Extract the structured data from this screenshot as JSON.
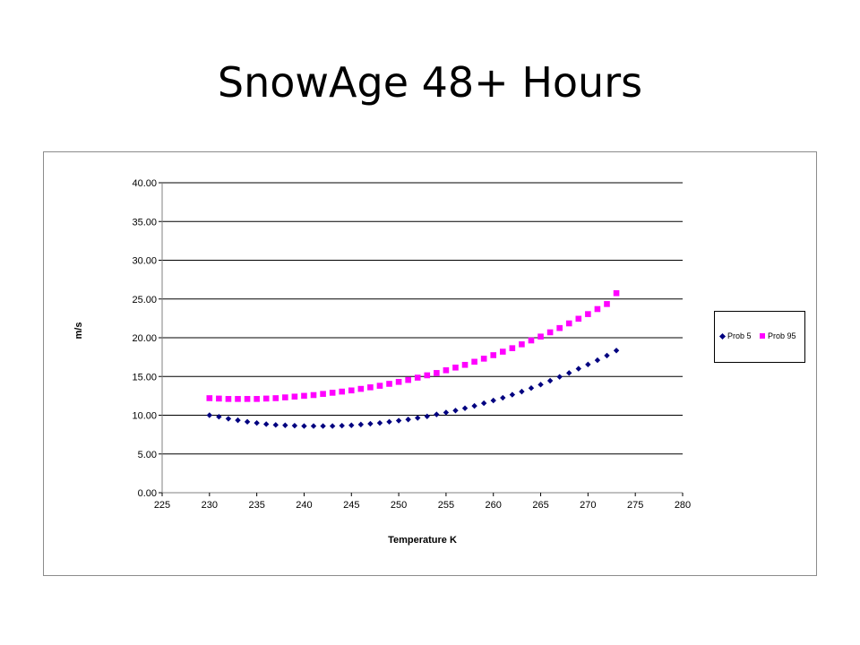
{
  "slide": {
    "title": "SnowAge 48+ Hours"
  },
  "chart_data": {
    "type": "scatter",
    "title": "",
    "xlabel": "Temperature K",
    "ylabel": "m/s",
    "xlim": [
      225,
      280
    ],
    "ylim": [
      0,
      40
    ],
    "x_ticks": [
      "225",
      "230",
      "235",
      "240",
      "245",
      "250",
      "255",
      "260",
      "265",
      "270",
      "275",
      "280"
    ],
    "y_ticks": [
      "0.00",
      "5.00",
      "10.00",
      "15.00",
      "20.00",
      "25.00",
      "30.00",
      "35.00",
      "40.00"
    ],
    "grid": "horizontal",
    "legend_position": "right",
    "x": [
      230,
      231,
      232,
      233,
      234,
      235,
      236,
      237,
      238,
      239,
      240,
      241,
      242,
      243,
      244,
      245,
      246,
      247,
      248,
      249,
      250,
      251,
      252,
      253,
      254,
      255,
      256,
      257,
      258,
      259,
      260,
      261,
      262,
      263,
      264,
      265,
      266,
      267,
      268,
      269,
      270,
      271,
      272,
      273
    ],
    "series": [
      {
        "name": "Prob 5",
        "color": "#000080",
        "marker": "diamond",
        "values": [
          10.0,
          9.8,
          9.55,
          9.35,
          9.15,
          9.0,
          8.85,
          8.75,
          8.7,
          8.65,
          8.6,
          8.6,
          8.6,
          8.6,
          8.65,
          8.7,
          8.8,
          8.9,
          9.0,
          9.15,
          9.3,
          9.45,
          9.65,
          9.85,
          10.1,
          10.35,
          10.6,
          10.9,
          11.2,
          11.55,
          11.9,
          12.25,
          12.65,
          13.05,
          13.5,
          13.95,
          14.45,
          14.95,
          15.45,
          16.0,
          16.55,
          17.1,
          17.7,
          18.35
        ]
      },
      {
        "name": "Prob 95",
        "color": "#FF00FF",
        "marker": "square",
        "values": [
          12.2,
          12.15,
          12.1,
          12.1,
          12.1,
          12.1,
          12.15,
          12.2,
          12.3,
          12.4,
          12.5,
          12.6,
          12.75,
          12.9,
          13.05,
          13.2,
          13.4,
          13.6,
          13.8,
          14.05,
          14.3,
          14.55,
          14.85,
          15.15,
          15.45,
          15.8,
          16.15,
          16.5,
          16.9,
          17.3,
          17.75,
          18.2,
          18.65,
          19.15,
          19.65,
          20.15,
          20.7,
          21.25,
          21.85,
          22.45,
          23.05,
          23.7,
          24.35,
          25.75
        ]
      }
    ]
  }
}
